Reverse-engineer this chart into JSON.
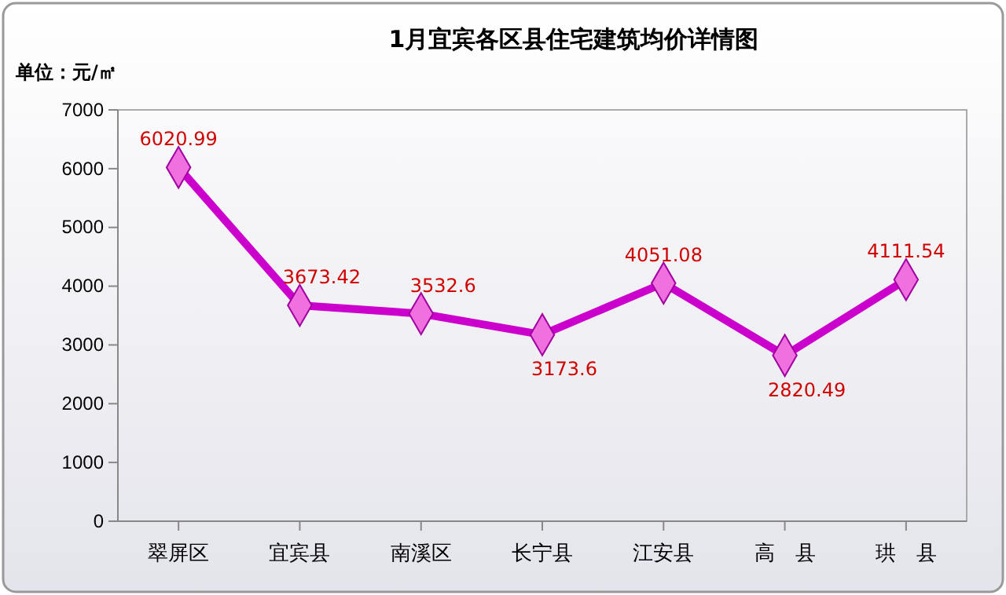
{
  "chart_data": {
    "type": "line",
    "title": "1月宜宾各区县住宅建筑均价详情图",
    "ylabel": "单位：元/㎡",
    "categories": [
      "翠屏区",
      "宜宾县",
      "南溪区",
      "长宁县",
      "江安县",
      "高　县",
      "珙　县"
    ],
    "series": [
      {
        "color": "#cc00cc",
        "values": [
          6020.99,
          3673.42,
          3532.6,
          3173.6,
          4051.08,
          2820.49,
          4111.54
        ]
      }
    ],
    "ylim": [
      0,
      7000
    ],
    "yticks": [
      0,
      1000,
      2000,
      3000,
      4000,
      5000,
      6000,
      7000
    ],
    "grid": false,
    "marker": "diamond",
    "line_style": "solid",
    "data_labels": true
  }
}
